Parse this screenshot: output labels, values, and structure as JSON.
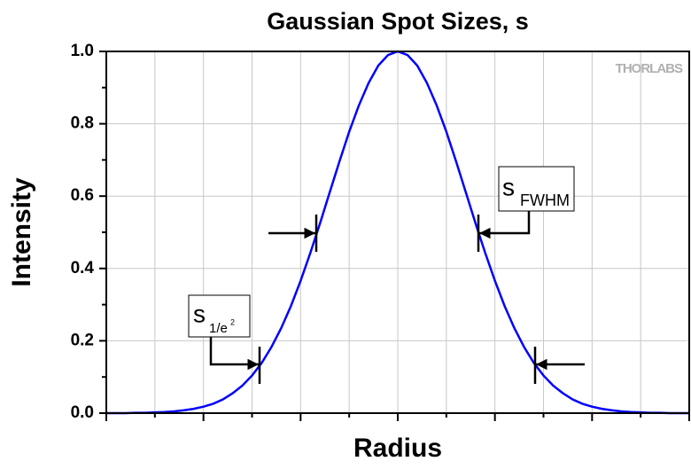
{
  "chart_data": {
    "type": "line",
    "title": "Gaussian Spot Sizes, s",
    "xlabel": "Radius",
    "ylabel": "Intensity",
    "watermark": "THORLABS",
    "x": [
      -3.0,
      -2.9,
      -2.8,
      -2.7,
      -2.6,
      -2.5,
      -2.4,
      -2.3,
      -2.2,
      -2.1,
      -2.0,
      -1.9,
      -1.8,
      -1.7,
      -1.6,
      -1.5,
      -1.4,
      -1.3,
      -1.2,
      -1.1,
      -1.0,
      -0.9,
      -0.8,
      -0.7,
      -0.6,
      -0.5,
      -0.4,
      -0.3,
      -0.2,
      -0.1,
      0,
      0.1,
      0.2,
      0.3,
      0.4,
      0.5,
      0.6,
      0.7,
      0.8,
      0.9,
      1.0,
      1.1,
      1.2,
      1.3,
      1.4,
      1.5,
      1.6,
      1.7,
      1.8,
      1.9,
      2.0,
      2.1,
      2.2,
      2.3,
      2.4,
      2.5,
      2.6,
      2.7,
      2.8,
      2.9,
      3.0
    ],
    "series": [
      {
        "color": "#0000ff",
        "values": [
          0,
          0,
          0,
          0.001,
          0.001,
          0.002,
          0.003,
          0.005,
          0.008,
          0.012,
          0.018,
          0.026,
          0.038,
          0.055,
          0.076,
          0.104,
          0.139,
          0.183,
          0.235,
          0.296,
          0.366,
          0.443,
          0.525,
          0.611,
          0.696,
          0.778,
          0.851,
          0.913,
          0.961,
          0.99,
          1,
          0.99,
          0.961,
          0.913,
          0.851,
          0.778,
          0.696,
          0.611,
          0.525,
          0.443,
          0.366,
          0.296,
          0.235,
          0.183,
          0.139,
          0.104,
          0.076,
          0.055,
          0.038,
          0.026,
          0.018,
          0.012,
          0.008,
          0.005,
          0.003,
          0.002,
          0.001,
          0.001,
          0,
          0,
          0
        ]
      }
    ],
    "xlim": [
      -3,
      3
    ],
    "xticks": [
      -3,
      -2.5,
      -2,
      -1.5,
      -1,
      -0.5,
      0,
      0.5,
      1,
      1.5,
      2,
      2.5,
      3
    ],
    "ylim": [
      0,
      1
    ],
    "yticks": [
      {
        "value": 0,
        "label": "0.0"
      },
      0.2,
      0.4,
      0.6,
      0.8,
      {
        "value": 1,
        "label": "1.0"
      }
    ],
    "grid": true,
    "annotations": [
      {
        "text": "s",
        "subscript": "FWHM"
      },
      {
        "text": "s",
        "subscript": "1/e",
        "superscript": "2"
      }
    ]
  }
}
